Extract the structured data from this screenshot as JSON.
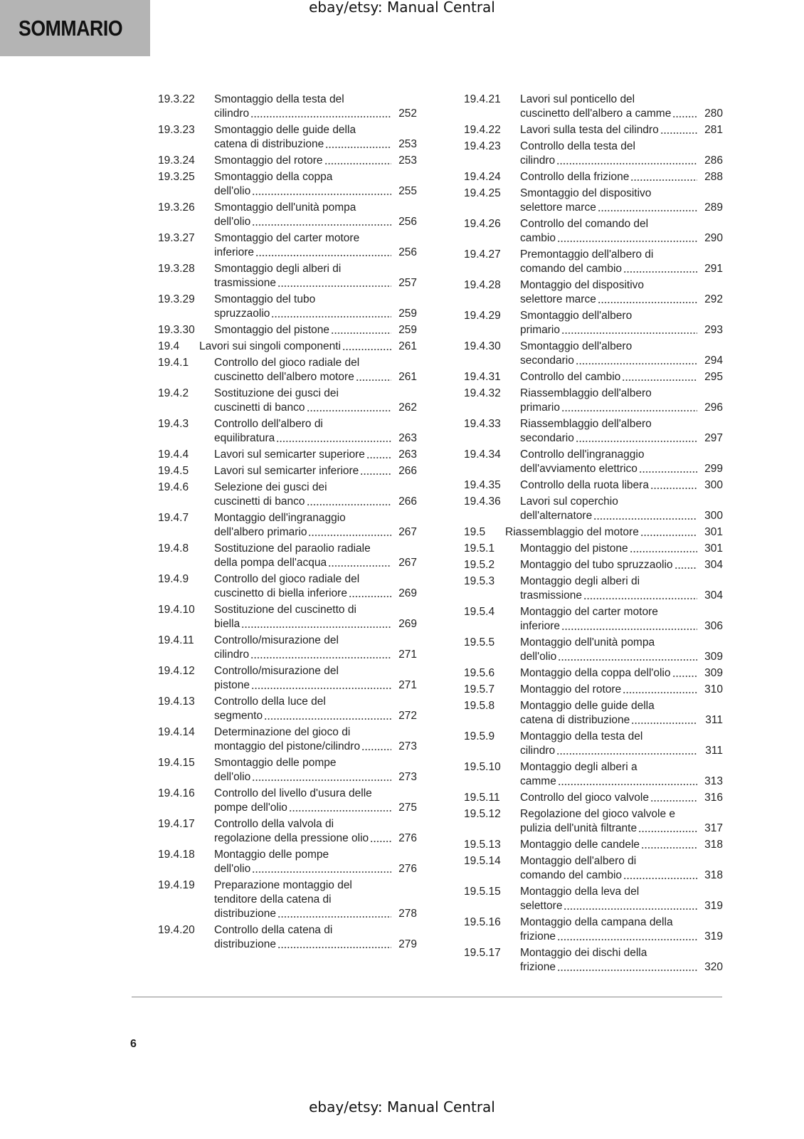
{
  "header": {
    "title": "SOMMARIO"
  },
  "watermark_top": "ebay/etsy: Manual Central",
  "watermark_bottom": "ebay/etsy: Manual Central",
  "page_number": 6,
  "toc": {
    "left": [
      {
        "number": "19.3.22",
        "lines": [
          "Smontaggio della testa del",
          "cilindro"
        ],
        "page": 252
      },
      {
        "number": "19.3.23",
        "lines": [
          "Smontaggio delle guide della",
          "catena di distribuzione"
        ],
        "page": 253
      },
      {
        "number": "19.3.24",
        "lines": [
          "Smontaggio del rotore"
        ],
        "page": 253
      },
      {
        "number": "19.3.25",
        "lines": [
          "Smontaggio della coppa",
          "dell'olio"
        ],
        "page": 255
      },
      {
        "number": "19.3.26",
        "lines": [
          "Smontaggio dell'unità pompa",
          "dell'olio"
        ],
        "page": 256
      },
      {
        "number": "19.3.27",
        "lines": [
          "Smontaggio del carter motore",
          "inferiore"
        ],
        "page": 256
      },
      {
        "number": "19.3.28",
        "lines": [
          "Smontaggio degli alberi di",
          "trasmissione"
        ],
        "page": 257
      },
      {
        "number": "19.3.29",
        "lines": [
          "Smontaggio del tubo",
          "spruzzaolio"
        ],
        "page": 259
      },
      {
        "number": "19.3.30",
        "lines": [
          "Smontaggio del pistone"
        ],
        "page": 259
      },
      {
        "number": "19.4",
        "lines": [
          "Lavori sui singoli componenti"
        ],
        "page": 261
      },
      {
        "number": "19.4.1",
        "lines": [
          "Controllo del gioco radiale del",
          "cuscinetto dell'albero motore"
        ],
        "page": 261
      },
      {
        "number": "19.4.2",
        "lines": [
          "Sostituzione dei gusci dei",
          "cuscinetti di banco"
        ],
        "page": 262
      },
      {
        "number": "19.4.3",
        "lines": [
          "Controllo dell'albero di",
          "equilibratura"
        ],
        "page": 263
      },
      {
        "number": "19.4.4",
        "lines": [
          "Lavori sul semicarter superiore"
        ],
        "page": 263
      },
      {
        "number": "19.4.5",
        "lines": [
          "Lavori sul semicarter inferiore"
        ],
        "page": 266
      },
      {
        "number": "19.4.6",
        "lines": [
          "Selezione dei gusci dei",
          "cuscinetti di banco"
        ],
        "page": 266
      },
      {
        "number": "19.4.7",
        "lines": [
          "Montaggio dell'ingranaggio",
          "dell'albero primario"
        ],
        "page": 267
      },
      {
        "number": "19.4.8",
        "lines": [
          "Sostituzione del paraolio radiale",
          "della pompa dell'acqua"
        ],
        "page": 267
      },
      {
        "number": "19.4.9",
        "lines": [
          "Controllo del gioco radiale del",
          "cuscinetto di biella inferiore"
        ],
        "page": 269
      },
      {
        "number": "19.4.10",
        "lines": [
          "Sostituzione del cuscinetto di",
          "biella"
        ],
        "page": 269
      },
      {
        "number": "19.4.11",
        "lines": [
          "Controllo/misurazione del",
          "cilindro"
        ],
        "page": 271
      },
      {
        "number": "19.4.12",
        "lines": [
          "Controllo/misurazione del",
          "pistone"
        ],
        "page": 271
      },
      {
        "number": "19.4.13",
        "lines": [
          "Controllo della luce del",
          "segmento"
        ],
        "page": 272
      },
      {
        "number": "19.4.14",
        "lines": [
          "Determinazione del gioco di",
          "montaggio del pistone/cilindro"
        ],
        "page": 273
      },
      {
        "number": "19.4.15",
        "lines": [
          "Smontaggio delle pompe",
          "dell'olio"
        ],
        "page": 273
      },
      {
        "number": "19.4.16",
        "lines": [
          "Controllo del livello d'usura delle",
          "pompe dell'olio"
        ],
        "page": 275
      },
      {
        "number": "19.4.17",
        "lines": [
          "Controllo della valvola di",
          "regolazione della pressione olio"
        ],
        "page": 276
      },
      {
        "number": "19.4.18",
        "lines": [
          "Montaggio delle pompe",
          "dell'olio"
        ],
        "page": 276
      },
      {
        "number": "19.4.19",
        "lines": [
          "Preparazione montaggio del",
          "tenditore della catena di",
          "distribuzione"
        ],
        "page": 278
      },
      {
        "number": "19.4.20",
        "lines": [
          "Controllo della catena di",
          "distribuzione"
        ],
        "page": 279
      }
    ],
    "right": [
      {
        "number": "19.4.21",
        "lines": [
          "Lavori sul ponticello del",
          "cuscinetto dell'albero a camme"
        ],
        "page": 280
      },
      {
        "number": "19.4.22",
        "lines": [
          "Lavori sulla testa del cilindro"
        ],
        "page": 281
      },
      {
        "number": "19.4.23",
        "lines": [
          "Controllo della testa del",
          "cilindro"
        ],
        "page": 286
      },
      {
        "number": "19.4.24",
        "lines": [
          "Controllo della frizione"
        ],
        "page": 288
      },
      {
        "number": "19.4.25",
        "lines": [
          "Smontaggio del dispositivo",
          "selettore marce"
        ],
        "page": 289
      },
      {
        "number": "19.4.26",
        "lines": [
          "Controllo del comando del",
          "cambio"
        ],
        "page": 290
      },
      {
        "number": "19.4.27",
        "lines": [
          "Premontaggio dell'albero di",
          "comando del cambio"
        ],
        "page": 291
      },
      {
        "number": "19.4.28",
        "lines": [
          "Montaggio del dispositivo",
          "selettore marce"
        ],
        "page": 292
      },
      {
        "number": "19.4.29",
        "lines": [
          "Smontaggio dell'albero",
          "primario"
        ],
        "page": 293
      },
      {
        "number": "19.4.30",
        "lines": [
          "Smontaggio dell'albero",
          "secondario"
        ],
        "page": 294
      },
      {
        "number": "19.4.31",
        "lines": [
          "Controllo del cambio"
        ],
        "page": 295
      },
      {
        "number": "19.4.32",
        "lines": [
          "Riassemblaggio dell'albero",
          "primario"
        ],
        "page": 296
      },
      {
        "number": "19.4.33",
        "lines": [
          "Riassemblaggio dell'albero",
          "secondario"
        ],
        "page": 297
      },
      {
        "number": "19.4.34",
        "lines": [
          "Controllo dell'ingranaggio",
          "dell'avviamento elettrico"
        ],
        "page": 299
      },
      {
        "number": "19.4.35",
        "lines": [
          "Controllo della ruota libera"
        ],
        "page": 300
      },
      {
        "number": "19.4.36",
        "lines": [
          "Lavori sul coperchio",
          "dell'alternatore"
        ],
        "page": 300
      },
      {
        "number": "19.5",
        "lines": [
          "Riassemblaggio del motore"
        ],
        "page": 301
      },
      {
        "number": "19.5.1",
        "lines": [
          "Montaggio del pistone"
        ],
        "page": 301
      },
      {
        "number": "19.5.2",
        "lines": [
          "Montaggio del tubo spruzzaolio"
        ],
        "page": 304
      },
      {
        "number": "19.5.3",
        "lines": [
          "Montaggio degli alberi di",
          "trasmissione"
        ],
        "page": 304
      },
      {
        "number": "19.5.4",
        "lines": [
          "Montaggio del carter motore",
          "inferiore"
        ],
        "page": 306
      },
      {
        "number": "19.5.5",
        "lines": [
          "Montaggio dell'unità pompa",
          "dell'olio"
        ],
        "page": 309
      },
      {
        "number": "19.5.6",
        "lines": [
          "Montaggio della coppa dell'olio"
        ],
        "page": 309
      },
      {
        "number": "19.5.7",
        "lines": [
          "Montaggio del rotore"
        ],
        "page": 310
      },
      {
        "number": "19.5.8",
        "lines": [
          "Montaggio delle guide della",
          "catena di distribuzione"
        ],
        "page": 311
      },
      {
        "number": "19.5.9",
        "lines": [
          "Montaggio della testa del",
          "cilindro"
        ],
        "page": 311
      },
      {
        "number": "19.5.10",
        "lines": [
          "Montaggio degli alberi a",
          "camme"
        ],
        "page": 313
      },
      {
        "number": "19.5.11",
        "lines": [
          "Controllo del gioco valvole"
        ],
        "page": 316
      },
      {
        "number": "19.5.12",
        "lines": [
          "Regolazione del gioco valvole e",
          "pulizia dell'unità filtrante"
        ],
        "page": 317
      },
      {
        "number": "19.5.13",
        "lines": [
          "Montaggio delle candele"
        ],
        "page": 318
      },
      {
        "number": "19.5.14",
        "lines": [
          "Montaggio dell'albero di",
          "comando del cambio"
        ],
        "page": 318
      },
      {
        "number": "19.5.15",
        "lines": [
          "Montaggio della leva del",
          "selettore"
        ],
        "page": 319
      },
      {
        "number": "19.5.16",
        "lines": [
          "Montaggio della campana della",
          "frizione"
        ],
        "page": 319
      },
      {
        "number": "19.5.17",
        "lines": [
          "Montaggio dei dischi della",
          "frizione"
        ],
        "page": 320
      }
    ]
  }
}
